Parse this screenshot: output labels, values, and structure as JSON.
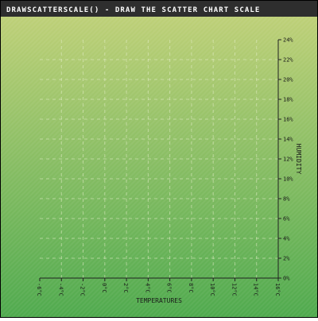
{
  "chart_data": {
    "type": "scatter",
    "title": "drawScatterScale() - draw the scatter chart scale",
    "xlabel": "Temperatures",
    "ylabel": "Humidity",
    "xlim": [
      -6,
      16
    ],
    "ylim": [
      0,
      24
    ],
    "x_ticks": [
      -6,
      -4,
      -2,
      0,
      2,
      4,
      6,
      8,
      10,
      12,
      14,
      16
    ],
    "x_tick_labels": [
      "-6°C",
      "-4°C",
      "-2°C",
      "0°C",
      "2°C",
      "4°C",
      "6°C",
      "8°C",
      "10°C",
      "12°C",
      "14°C",
      "16°C"
    ],
    "y_ticks": [
      0,
      2,
      4,
      6,
      8,
      10,
      12,
      14,
      16,
      18,
      20,
      22,
      24
    ],
    "y_tick_labels": [
      "0%",
      "2%",
      "4%",
      "6%",
      "8%",
      "10%",
      "12%",
      "14%",
      "16%",
      "18%",
      "20%",
      "22%",
      "24%"
    ],
    "y_axis_position": "right",
    "grid": true,
    "series": []
  },
  "colors": {
    "title_bar": "#2e2e2e",
    "title_text": "#ffffff",
    "background_top": "#c4d27a",
    "background_bottom": "#4faa4e",
    "grid": "#e6efcb",
    "axis": "#202020"
  }
}
